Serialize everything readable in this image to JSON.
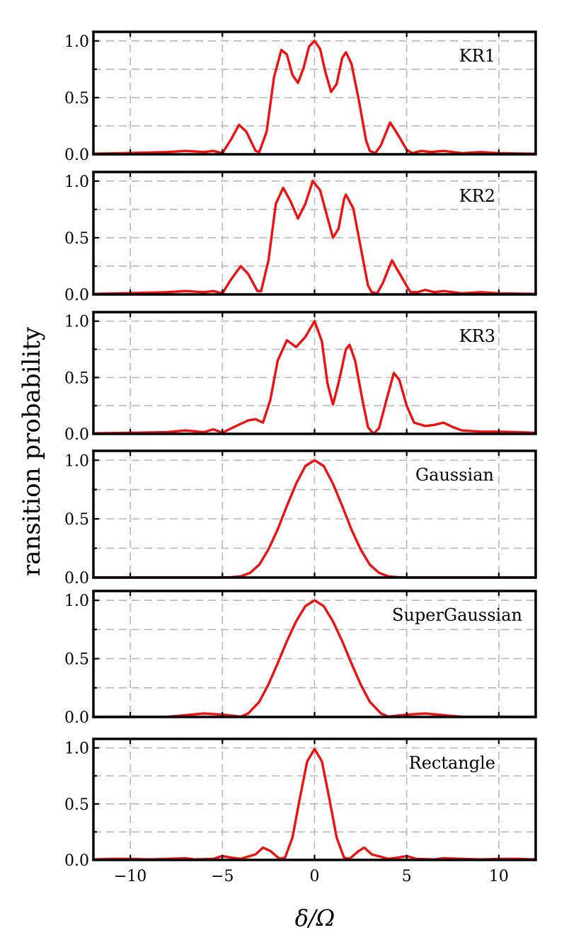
{
  "chart_data": {
    "type": "line",
    "ylabel": "ransition probability",
    "xlabel": "δ/Ω",
    "xlim": [
      -12,
      12
    ],
    "ylim": [
      0,
      1.08
    ],
    "x_ticks": [
      -10,
      -5,
      0,
      5,
      10
    ],
    "x_tick_labels": [
      "−10",
      "−5",
      "0",
      "5",
      "10"
    ],
    "y_ticks": [
      0.0,
      0.5,
      1.0
    ],
    "y_tick_labels": [
      "0.0",
      "0.5",
      "1.0"
    ],
    "y_minor_ticks": [
      0.25,
      0.75
    ],
    "grid": true,
    "line_color": "#ee1111",
    "panels": [
      {
        "label": "KR1",
        "series": [
          {
            "name": "KR1",
            "points": [
              [
                -12,
                0.005
              ],
              [
                -10.5,
                0.01
              ],
              [
                -8,
                0.02
              ],
              [
                -7,
                0.03
              ],
              [
                -6,
                0.02
              ],
              [
                -5.5,
                0.03
              ],
              [
                -5,
                0.01
              ],
              [
                -4.5,
                0.14
              ],
              [
                -4.1,
                0.26
              ],
              [
                -3.7,
                0.2
              ],
              [
                -3.2,
                0.03
              ],
              [
                -3,
                0.02
              ],
              [
                -2.6,
                0.2
              ],
              [
                -2.2,
                0.68
              ],
              [
                -1.8,
                0.92
              ],
              [
                -1.5,
                0.88
              ],
              [
                -1.2,
                0.7
              ],
              [
                -0.9,
                0.63
              ],
              [
                -0.6,
                0.76
              ],
              [
                -0.3,
                0.95
              ],
              [
                0,
                1.0
              ],
              [
                0.3,
                0.93
              ],
              [
                0.6,
                0.72
              ],
              [
                0.9,
                0.55
              ],
              [
                1.2,
                0.62
              ],
              [
                1.5,
                0.85
              ],
              [
                1.7,
                0.9
              ],
              [
                2,
                0.8
              ],
              [
                2.4,
                0.48
              ],
              [
                2.8,
                0.12
              ],
              [
                3,
                0.03
              ],
              [
                3.3,
                0.01
              ],
              [
                3.6,
                0.08
              ],
              [
                4.1,
                0.28
              ],
              [
                4.5,
                0.18
              ],
              [
                5,
                0.04
              ],
              [
                5.3,
                0.01
              ],
              [
                5.8,
                0.03
              ],
              [
                6.3,
                0.02
              ],
              [
                7,
                0.03
              ],
              [
                8,
                0.01
              ],
              [
                9,
                0.02
              ],
              [
                10,
                0.01
              ],
              [
                12,
                0.005
              ]
            ]
          }
        ]
      },
      {
        "label": "KR2",
        "series": [
          {
            "name": "KR2",
            "points": [
              [
                -12,
                0.005
              ],
              [
                -10.5,
                0.01
              ],
              [
                -8,
                0.02
              ],
              [
                -7,
                0.03
              ],
              [
                -6,
                0.02
              ],
              [
                -5.5,
                0.03
              ],
              [
                -5,
                0.01
              ],
              [
                -4.5,
                0.14
              ],
              [
                -4,
                0.25
              ],
              [
                -3.6,
                0.18
              ],
              [
                -3.1,
                0.03
              ],
              [
                -2.9,
                0.03
              ],
              [
                -2.5,
                0.3
              ],
              [
                -2.1,
                0.8
              ],
              [
                -1.7,
                0.94
              ],
              [
                -1.3,
                0.82
              ],
              [
                -0.9,
                0.67
              ],
              [
                -0.5,
                0.8
              ],
              [
                -0.1,
                1.0
              ],
              [
                0.3,
                0.92
              ],
              [
                0.7,
                0.68
              ],
              [
                1,
                0.5
              ],
              [
                1.3,
                0.58
              ],
              [
                1.6,
                0.84
              ],
              [
                1.7,
                0.88
              ],
              [
                2.1,
                0.76
              ],
              [
                2.5,
                0.42
              ],
              [
                2.9,
                0.08
              ],
              [
                3.1,
                0.02
              ],
              [
                3.4,
                0.01
              ],
              [
                3.7,
                0.1
              ],
              [
                4.2,
                0.3
              ],
              [
                4.7,
                0.16
              ],
              [
                5.2,
                0.02
              ],
              [
                5.6,
                0.02
              ],
              [
                6,
                0.04
              ],
              [
                6.5,
                0.02
              ],
              [
                7,
                0.03
              ],
              [
                8,
                0.01
              ],
              [
                9,
                0.02
              ],
              [
                10,
                0.01
              ],
              [
                12,
                0.005
              ]
            ]
          }
        ]
      },
      {
        "label": "KR3",
        "series": [
          {
            "name": "KR3",
            "points": [
              [
                -12,
                0.005
              ],
              [
                -10,
                0.01
              ],
              [
                -8,
                0.015
              ],
              [
                -7,
                0.03
              ],
              [
                -6,
                0.015
              ],
              [
                -5.5,
                0.04
              ],
              [
                -5,
                0.01
              ],
              [
                -4.5,
                0.05
              ],
              [
                -3.6,
                0.12
              ],
              [
                -3.2,
                0.13
              ],
              [
                -2.8,
                0.1
              ],
              [
                -2.4,
                0.3
              ],
              [
                -2,
                0.65
              ],
              [
                -1.5,
                0.83
              ],
              [
                -1,
                0.77
              ],
              [
                -0.5,
                0.86
              ],
              [
                0,
                1.0
              ],
              [
                0.4,
                0.82
              ],
              [
                0.7,
                0.45
              ],
              [
                1,
                0.26
              ],
              [
                1.3,
                0.45
              ],
              [
                1.7,
                0.75
              ],
              [
                1.9,
                0.79
              ],
              [
                2.2,
                0.65
              ],
              [
                2.6,
                0.3
              ],
              [
                2.9,
                0.06
              ],
              [
                3.2,
                0.0
              ],
              [
                3.5,
                0.05
              ],
              [
                3.9,
                0.3
              ],
              [
                4.3,
                0.54
              ],
              [
                4.6,
                0.48
              ],
              [
                5,
                0.25
              ],
              [
                5.4,
                0.1
              ],
              [
                6,
                0.07
              ],
              [
                6.5,
                0.08
              ],
              [
                7,
                0.1
              ],
              [
                7.5,
                0.06
              ],
              [
                8,
                0.03
              ],
              [
                9,
                0.02
              ],
              [
                10,
                0.02
              ],
              [
                12,
                0.01
              ]
            ]
          }
        ]
      },
      {
        "label": "Gaussian",
        "series": [
          {
            "name": "Gaussian",
            "points": [
              [
                -12,
                0.0
              ],
              [
                -5,
                0.0
              ],
              [
                -4.5,
                0.003
              ],
              [
                -4,
                0.01
              ],
              [
                -3.5,
                0.04
              ],
              [
                -3,
                0.11
              ],
              [
                -2.5,
                0.24
              ],
              [
                -2,
                0.41
              ],
              [
                -1.5,
                0.61
              ],
              [
                -1,
                0.8
              ],
              [
                -0.5,
                0.95
              ],
              [
                0,
                1.0
              ],
              [
                0.5,
                0.95
              ],
              [
                1,
                0.8
              ],
              [
                1.5,
                0.61
              ],
              [
                2,
                0.41
              ],
              [
                2.5,
                0.24
              ],
              [
                3,
                0.11
              ],
              [
                3.5,
                0.04
              ],
              [
                4,
                0.01
              ],
              [
                4.5,
                0.003
              ],
              [
                5,
                0.0
              ],
              [
                12,
                0.0
              ]
            ]
          }
        ]
      },
      {
        "label": "SuperGaussian",
        "series": [
          {
            "name": "SuperGaussian",
            "points": [
              [
                -12,
                0.0
              ],
              [
                -8,
                0.002
              ],
              [
                -7,
                0.015
              ],
              [
                -6,
                0.03
              ],
              [
                -5,
                0.02
              ],
              [
                -4,
                0.003
              ],
              [
                -3.6,
                0.03
              ],
              [
                -3,
                0.13
              ],
              [
                -2.5,
                0.28
              ],
              [
                -2,
                0.46
              ],
              [
                -1.5,
                0.65
              ],
              [
                -1,
                0.82
              ],
              [
                -0.5,
                0.95
              ],
              [
                0,
                1.0
              ],
              [
                0.5,
                0.95
              ],
              [
                1,
                0.82
              ],
              [
                1.5,
                0.65
              ],
              [
                2,
                0.46
              ],
              [
                2.5,
                0.28
              ],
              [
                3,
                0.13
              ],
              [
                3.6,
                0.03
              ],
              [
                4,
                0.003
              ],
              [
                5,
                0.02
              ],
              [
                6,
                0.03
              ],
              [
                7,
                0.015
              ],
              [
                8,
                0.002
              ],
              [
                12,
                0.0
              ]
            ]
          }
        ]
      },
      {
        "label": "Rectangle",
        "series": [
          {
            "name": "Rectangle",
            "points": [
              [
                -12,
                0.005
              ],
              [
                -11,
                0.01
              ],
              [
                -10,
                0.01
              ],
              [
                -9,
                0.005
              ],
              [
                -8,
                0.01
              ],
              [
                -7,
                0.015
              ],
              [
                -6.5,
                0.005
              ],
              [
                -5.5,
                0.01
              ],
              [
                -5,
                0.035
              ],
              [
                -4.5,
                0.02
              ],
              [
                -4,
                0.01
              ],
              [
                -3.2,
                0.05
              ],
              [
                -2.8,
                0.11
              ],
              [
                -2.4,
                0.08
              ],
              [
                -1.9,
                0.01
              ],
              [
                -1.6,
                0.02
              ],
              [
                -1.2,
                0.2
              ],
              [
                -0.8,
                0.55
              ],
              [
                -0.4,
                0.88
              ],
              [
                0,
                0.99
              ],
              [
                0.4,
                0.88
              ],
              [
                0.8,
                0.55
              ],
              [
                1.2,
                0.2
              ],
              [
                1.6,
                0.02
              ],
              [
                1.9,
                0.01
              ],
              [
                2.4,
                0.08
              ],
              [
                2.7,
                0.11
              ],
              [
                3.1,
                0.05
              ],
              [
                4,
                0.01
              ],
              [
                4.5,
                0.02
              ],
              [
                5,
                0.035
              ],
              [
                5.5,
                0.01
              ],
              [
                6.5,
                0.005
              ],
              [
                7,
                0.015
              ],
              [
                8,
                0.01
              ],
              [
                9,
                0.005
              ],
              [
                10,
                0.01
              ],
              [
                11,
                0.01
              ],
              [
                12,
                0.005
              ]
            ]
          }
        ]
      }
    ]
  }
}
